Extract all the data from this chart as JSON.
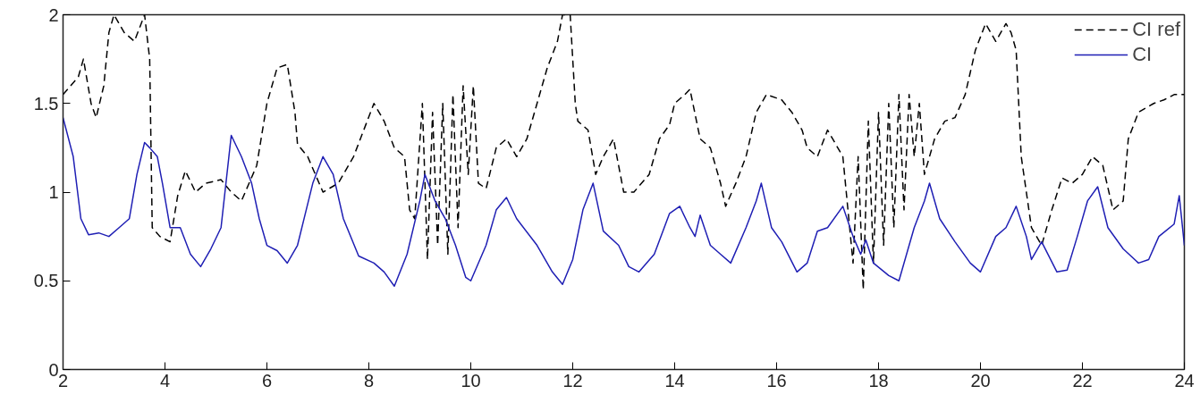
{
  "chart_data": {
    "type": "line",
    "xlim": [
      2,
      24
    ],
    "ylim": [
      0,
      2
    ],
    "xticks": [
      2,
      4,
      6,
      8,
      10,
      12,
      14,
      16,
      18,
      20,
      22,
      24
    ],
    "yticks": [
      0,
      0.5,
      1,
      1.5,
      2
    ],
    "grid": false,
    "legend": "top right",
    "marker": "none",
    "series": [
      {
        "name": "CI ref",
        "color": "#000000",
        "line_style": "dashed",
        "x": [
          2,
          2.3,
          2.4,
          2.55,
          2.65,
          2.8,
          2.9,
          3.0,
          3.2,
          3.4,
          3.6,
          3.7,
          3.75,
          3.9,
          4.1,
          4.25,
          4.4,
          4.6,
          4.8,
          5.1,
          5.3,
          5.5,
          5.8,
          6.0,
          6.2,
          6.4,
          6.55,
          6.6,
          6.8,
          7.1,
          7.4,
          7.7,
          7.9,
          8.1,
          8.3,
          8.5,
          8.7,
          8.8,
          8.9,
          9.05,
          9.15,
          9.25,
          9.35,
          9.45,
          9.55,
          9.65,
          9.75,
          9.85,
          9.95,
          10.05,
          10.15,
          10.3,
          10.5,
          10.7,
          10.9,
          11.1,
          11.3,
          11.5,
          11.7,
          11.8,
          11.95,
          12.05,
          12.1,
          12.3,
          12.45,
          12.6,
          12.8,
          13.0,
          13.2,
          13.5,
          13.7,
          13.9,
          14.0,
          14.2,
          14.3,
          14.5,
          14.7,
          14.9,
          15.0,
          15.2,
          15.4,
          15.6,
          15.8,
          16.1,
          16.3,
          16.5,
          16.6,
          16.8,
          17.0,
          17.1,
          17.3,
          17.5,
          17.6,
          17.7,
          17.8,
          17.9,
          18.0,
          18.1,
          18.2,
          18.3,
          18.4,
          18.5,
          18.6,
          18.7,
          18.8,
          18.9,
          19.1,
          19.3,
          19.5,
          19.7,
          19.9,
          20.1,
          20.3,
          20.5,
          20.6,
          20.7,
          20.8,
          21.0,
          21.2,
          21.4,
          21.6,
          21.8,
          22.0,
          22.2,
          22.4,
          22.6,
          22.8,
          22.9,
          23.1,
          23.4,
          23.6,
          23.8,
          24
        ],
        "values": [
          1.55,
          1.65,
          1.75,
          1.5,
          1.42,
          1.6,
          1.9,
          2.0,
          1.9,
          1.85,
          2.0,
          1.75,
          0.8,
          0.75,
          0.72,
          0.98,
          1.12,
          1.0,
          1.05,
          1.07,
          1.0,
          0.95,
          1.15,
          1.5,
          1.7,
          1.72,
          1.45,
          1.27,
          1.2,
          1.0,
          1.05,
          1.2,
          1.35,
          1.5,
          1.4,
          1.25,
          1.2,
          0.9,
          0.85,
          1.5,
          0.62,
          1.45,
          0.7,
          1.5,
          0.65,
          1.55,
          0.8,
          1.6,
          1.1,
          1.6,
          1.05,
          1.02,
          1.25,
          1.3,
          1.2,
          1.3,
          1.5,
          1.7,
          1.85,
          2.0,
          2.0,
          1.5,
          1.4,
          1.35,
          1.1,
          1.2,
          1.3,
          1.0,
          1.0,
          1.1,
          1.3,
          1.38,
          1.5,
          1.55,
          1.58,
          1.3,
          1.25,
          1.05,
          0.92,
          1.05,
          1.2,
          1.45,
          1.55,
          1.52,
          1.45,
          1.35,
          1.25,
          1.2,
          1.35,
          1.3,
          1.2,
          0.6,
          1.2,
          0.45,
          1.4,
          0.6,
          1.45,
          0.7,
          1.5,
          0.8,
          1.55,
          0.9,
          1.55,
          1.2,
          1.5,
          1.1,
          1.3,
          1.4,
          1.42,
          1.55,
          1.8,
          1.95,
          1.85,
          1.95,
          1.9,
          1.8,
          1.2,
          0.8,
          0.7,
          0.9,
          1.08,
          1.05,
          1.1,
          1.2,
          1.15,
          0.9,
          0.95,
          1.3,
          1.45,
          1.5,
          1.52,
          1.55,
          1.55
        ]
      },
      {
        "name": "CI",
        "color": "#1f1fb4",
        "line_style": "solid",
        "x": [
          2,
          2.2,
          2.35,
          2.5,
          2.7,
          2.9,
          3.1,
          3.3,
          3.45,
          3.6,
          3.7,
          3.85,
          3.95,
          4.1,
          4.3,
          4.5,
          4.7,
          4.9,
          5.1,
          5.3,
          5.5,
          5.7,
          5.85,
          6.0,
          6.2,
          6.4,
          6.6,
          6.9,
          7.1,
          7.3,
          7.5,
          7.8,
          8.1,
          8.3,
          8.5,
          8.75,
          9.0,
          9.1,
          9.3,
          9.5,
          9.7,
          9.9,
          10.0,
          10.3,
          10.5,
          10.7,
          10.9,
          11.3,
          11.6,
          11.8,
          12.0,
          12.2,
          12.4,
          12.6,
          12.9,
          13.1,
          13.3,
          13.6,
          13.9,
          14.1,
          14.3,
          14.4,
          14.5,
          14.7,
          14.9,
          15.1,
          15.4,
          15.6,
          15.7,
          15.9,
          16.1,
          16.4,
          16.6,
          16.8,
          17.0,
          17.3,
          17.5,
          17.65,
          17.75,
          17.9,
          18.2,
          18.4,
          18.7,
          18.9,
          19.0,
          19.2,
          19.5,
          19.8,
          20.0,
          20.3,
          20.5,
          20.7,
          20.9,
          21.0,
          21.2,
          21.5,
          21.7,
          21.9,
          22.1,
          22.3,
          22.5,
          22.8,
          23.1,
          23.3,
          23.5,
          23.8,
          23.9,
          24
        ],
        "values": [
          1.42,
          1.2,
          0.85,
          0.76,
          0.77,
          0.75,
          0.8,
          0.85,
          1.1,
          1.28,
          1.25,
          1.2,
          1.05,
          0.8,
          0.8,
          0.65,
          0.58,
          0.68,
          0.8,
          1.32,
          1.2,
          1.05,
          0.85,
          0.7,
          0.67,
          0.6,
          0.7,
          1.05,
          1.2,
          1.1,
          0.85,
          0.64,
          0.6,
          0.55,
          0.47,
          0.65,
          0.95,
          1.1,
          0.95,
          0.85,
          0.7,
          0.52,
          0.5,
          0.7,
          0.9,
          0.97,
          0.85,
          0.7,
          0.55,
          0.48,
          0.62,
          0.9,
          1.05,
          0.78,
          0.7,
          0.58,
          0.55,
          0.65,
          0.88,
          0.92,
          0.8,
          0.75,
          0.87,
          0.7,
          0.65,
          0.6,
          0.8,
          0.95,
          1.05,
          0.8,
          0.72,
          0.55,
          0.6,
          0.78,
          0.8,
          0.92,
          0.75,
          0.65,
          0.73,
          0.6,
          0.53,
          0.5,
          0.8,
          0.95,
          1.05,
          0.85,
          0.72,
          0.6,
          0.55,
          0.75,
          0.8,
          0.92,
          0.75,
          0.62,
          0.72,
          0.55,
          0.56,
          0.75,
          0.95,
          1.03,
          0.8,
          0.68,
          0.6,
          0.62,
          0.75,
          0.82,
          0.98,
          0.7
        ]
      }
    ]
  }
}
